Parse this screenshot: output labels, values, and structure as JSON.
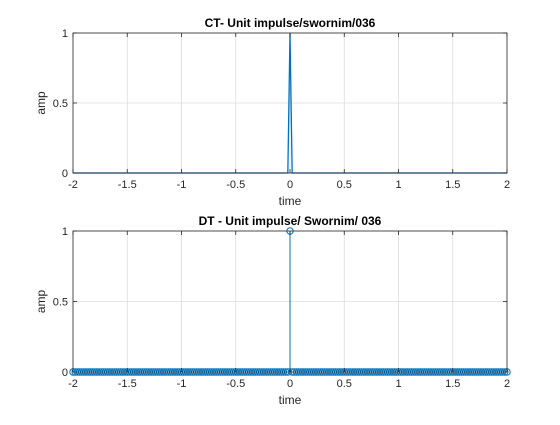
{
  "figure": {
    "background": "#ffffff",
    "axes_color": "#262626",
    "grid_color": "#dcdcdc",
    "line_color": "#0072bd"
  },
  "chart_data": [
    {
      "type": "line",
      "title": "CT- Unit impulse/swornim/036",
      "xlabel": "time",
      "ylabel": "amp",
      "xlim": [
        -2,
        2
      ],
      "ylim": [
        0,
        1
      ],
      "grid": true,
      "xticks": [
        -2,
        -1.5,
        -1,
        -0.5,
        0,
        0.5,
        1,
        1.5,
        2
      ],
      "xtick_labels": [
        "-2",
        "-1.5",
        "-1",
        "-0.5",
        "0",
        "0.5",
        "1",
        "1.5",
        "2"
      ],
      "yticks": [
        0,
        0.5,
        1
      ],
      "ytick_labels": [
        "0",
        "0.5",
        "1"
      ],
      "series": [
        {
          "x": [
            -2,
            -0.02,
            0,
            0.02,
            2
          ],
          "y": [
            0,
            0,
            1,
            0,
            0
          ]
        }
      ]
    },
    {
      "type": "stem",
      "title": "DT - Unit impulse/ Swornim/ 036",
      "xlabel": "time",
      "ylabel": "amp",
      "xlim": [
        -2,
        2
      ],
      "ylim": [
        0,
        1
      ],
      "grid": true,
      "xticks": [
        -2,
        -1.5,
        -1,
        -0.5,
        0,
        0.5,
        1,
        1.5,
        2
      ],
      "xtick_labels": [
        "-2",
        "-1.5",
        "-1",
        "-0.5",
        "0",
        "0.5",
        "1",
        "1.5",
        "2"
      ],
      "yticks": [
        0,
        0.5,
        1
      ],
      "ytick_labels": [
        "0",
        "0.5",
        "1"
      ],
      "series": [
        {
          "x_start": -2,
          "x_end": 2,
          "x_step": 0.02,
          "impulse_at": 0,
          "impulse_value": 1,
          "baseline_value": 0
        }
      ]
    }
  ]
}
